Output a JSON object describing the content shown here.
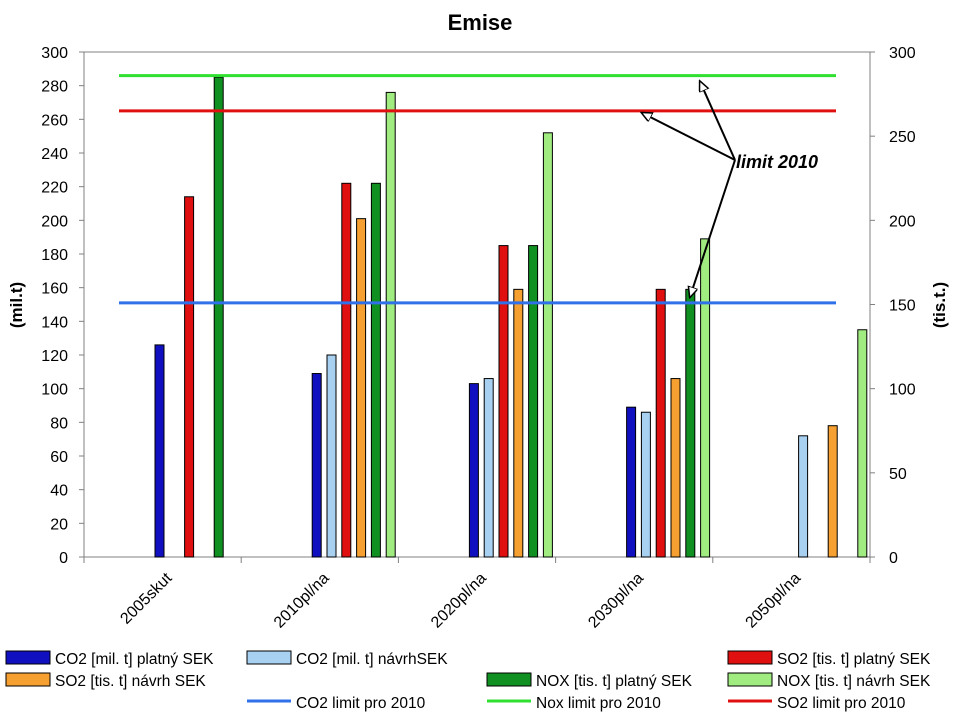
{
  "chart_data": {
    "type": "bar",
    "title": "Emise",
    "ylabel_left": "(mil.t)",
    "ylabel_right": "(tis.t.)",
    "categories": [
      "2005skut",
      "2010pl/na",
      "2020pl/na",
      "2030pl/na",
      "2050pl/na"
    ],
    "left_axis": {
      "ylim": [
        0,
        300
      ],
      "ticks": [
        0,
        20,
        40,
        60,
        80,
        100,
        120,
        140,
        160,
        180,
        200,
        220,
        240,
        260,
        280,
        300
      ]
    },
    "right_axis": {
      "ylim": [
        0,
        300
      ],
      "ticks": [
        0,
        50,
        100,
        150,
        200,
        250,
        300
      ]
    },
    "grid": false,
    "series": [
      {
        "name": "CO2 [mil. t] platný SEK",
        "color": "#1010c0",
        "values": [
          126,
          109,
          103,
          89,
          null
        ]
      },
      {
        "name": "CO2 [mil. t] návrhSEK",
        "color": "#a8d0f0",
        "values": [
          null,
          120,
          106,
          86,
          72
        ]
      },
      {
        "name": "SO2 [tis. t] platný SEK",
        "color": "#e01010",
        "values": [
          214,
          222,
          185,
          159,
          null
        ]
      },
      {
        "name": "SO2 [tis. t] návrh SEK",
        "color": "#f5a030",
        "values": [
          null,
          201,
          159,
          106,
          78
        ]
      },
      {
        "name": "NOX [tis. t] platný SEK",
        "color": "#109020",
        "values": [
          285,
          222,
          185,
          159,
          null
        ]
      },
      {
        "name": "NOX [tis. t] návrh SEK",
        "color": "#a0ec80",
        "values": [
          null,
          276,
          252,
          189,
          135
        ]
      }
    ],
    "limits": [
      {
        "name": "CO2 limit pro 2010",
        "color": "#3070e8",
        "value": 151
      },
      {
        "name": "Nox limit pro 2010",
        "color": "#30e030",
        "value": 286
      },
      {
        "name": "SO2 limit pro 2010",
        "color": "#e01010",
        "value": 265
      }
    ],
    "annotation": {
      "text": "limit 2010"
    },
    "legend": {
      "position": "bottom"
    }
  }
}
